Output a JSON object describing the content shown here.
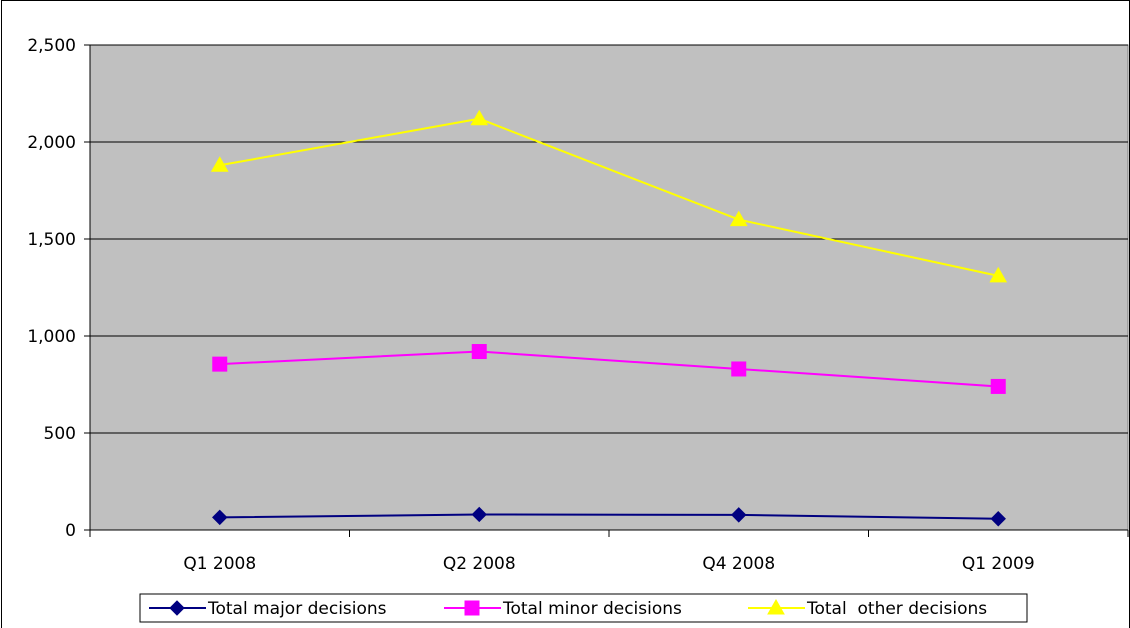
{
  "chart_data": {
    "type": "line",
    "title": "",
    "xlabel": "",
    "ylabel": "",
    "categories": [
      "Q1 2008",
      "Q2 2008",
      "Q4 2008",
      "Q1 2009"
    ],
    "ylim": [
      0,
      2500
    ],
    "y_ticks": [
      0,
      500,
      1000,
      1500,
      2000,
      2500
    ],
    "y_tick_labels": [
      "0",
      "500",
      "1,000",
      "1,500",
      "2,000",
      "2,500"
    ],
    "grid": "horizontal",
    "plot_background": "#c0c0c0",
    "legend_position": "bottom",
    "series": [
      {
        "name": "Total major decisions",
        "values": [
          65,
          80,
          78,
          58
        ],
        "color": "#000080",
        "marker": "diamond"
      },
      {
        "name": "Total minor decisions",
        "values": [
          855,
          920,
          830,
          740
        ],
        "color": "#ff00ff",
        "marker": "square"
      },
      {
        "name": "Total  other decisions",
        "values": [
          1880,
          2120,
          1600,
          1310
        ],
        "color": "#ffff00",
        "marker": "triangle"
      }
    ]
  }
}
